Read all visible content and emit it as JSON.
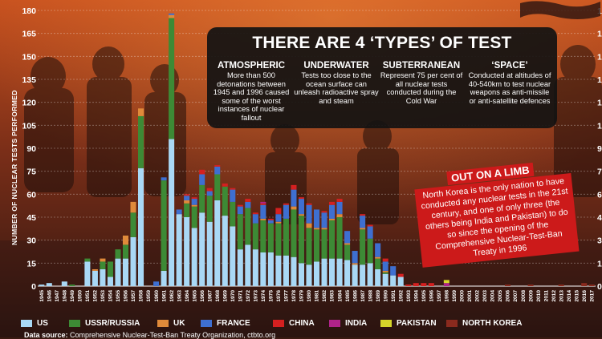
{
  "info": {
    "title": "THERE ARE 4 ‘TYPES’ OF TEST",
    "types": [
      {
        "head": "ATMOSPHERIC",
        "desc": "More than 500 detonations between 1945 and 1996 caused some of the worst instances of nuclear fallout"
      },
      {
        "head": "UNDERWATER",
        "desc": "Tests too close to the ocean surface can unleash radioactive spray and steam"
      },
      {
        "head": "SUBTERRANEAN",
        "desc": "Represent 75 per cent of all nuclear tests conducted during the Cold War"
      },
      {
        "head": "‘SPACE’",
        "desc": "Conducted at altitudes of 40-540km to test nuclear weapons as anti-missile or anti-satellite defences"
      }
    ]
  },
  "callout": {
    "title": "OUT ON A LIMB",
    "text": "North Korea is the only nation to have conducted any nuclear tests in the 21st century, and one of only three (the others being India and Pakistan) to do so since the opening of the Comprehensive Nuclear-Test-Ban Treaty in 1996"
  },
  "source": {
    "label": "Data source:",
    "text": "Comprehensive Nuclear-Test-Ban Treaty Organization, ctbto.org"
  },
  "colors": {
    "US": "#a9d8f5",
    "USSR/RUSSIA": "#3d8a35",
    "UK": "#e08a3a",
    "FRANCE": "#3e6fd0",
    "CHINA": "#d42020",
    "INDIA": "#b0238a",
    "PAKISTAN": "#d6d62a",
    "NORTH KOREA": "#8a2a1e"
  },
  "chart_data": {
    "type": "bar",
    "stacked": true,
    "ylabel": "NUMBER OF NUCLEAR TESTS PERFORMED",
    "ylim": [
      0,
      180
    ],
    "yticks": [
      0,
      15,
      30,
      45,
      60,
      75,
      90,
      105,
      120,
      135,
      150,
      165,
      180
    ],
    "categories": [
      "1945",
      "1946",
      "1947",
      "1948",
      "1949",
      "1950",
      "1951",
      "1952",
      "1953",
      "1954",
      "1955",
      "1956",
      "1957",
      "1958",
      "1959",
      "1960",
      "1961",
      "1962",
      "1963",
      "1964",
      "1965",
      "1966",
      "1967",
      "1968",
      "1969",
      "1970",
      "1971",
      "1972",
      "1973",
      "1974",
      "1975",
      "1976",
      "1977",
      "1978",
      "1979",
      "1980",
      "1981",
      "1982",
      "1983",
      "1984",
      "1985",
      "1986",
      "1987",
      "1988",
      "1989",
      "1990",
      "1991",
      "1992",
      "1993",
      "1994",
      "1995",
      "1996",
      "1997",
      "1998",
      "1999",
      "2000",
      "2001",
      "2002",
      "2003",
      "2004",
      "2005",
      "2006",
      "2007",
      "2008",
      "2009",
      "2010",
      "2011",
      "2012",
      "2013",
      "2014",
      "2015",
      "2016",
      "2017"
    ],
    "series": [
      {
        "name": "US",
        "values": [
          1,
          2,
          0,
          3,
          0,
          0,
          16,
          10,
          11,
          6,
          18,
          18,
          32,
          77,
          0,
          0,
          10,
          96,
          47,
          45,
          38,
          48,
          42,
          56,
          46,
          39,
          24,
          27,
          24,
          22,
          22,
          20,
          20,
          19,
          15,
          14,
          16,
          18,
          18,
          18,
          17,
          14,
          14,
          15,
          11,
          8,
          7,
          6,
          0,
          0,
          0,
          0,
          0,
          0,
          0,
          0,
          0,
          0,
          0,
          0,
          0,
          0,
          0,
          0,
          0,
          0,
          0,
          0,
          0,
          0,
          0,
          0,
          0
        ]
      },
      {
        "name": "USSR/RUSSIA",
        "values": [
          0,
          0,
          0,
          0,
          1,
          0,
          2,
          0,
          5,
          10,
          6,
          9,
          16,
          34,
          0,
          0,
          59,
          79,
          0,
          9,
          14,
          18,
          17,
          17,
          19,
          16,
          23,
          24,
          17,
          21,
          19,
          21,
          24,
          31,
          31,
          24,
          21,
          19,
          25,
          27,
          10,
          0,
          23,
          16,
          7,
          1,
          0,
          0,
          0,
          0,
          0,
          0,
          0,
          0,
          0,
          0,
          0,
          0,
          0,
          0,
          0,
          0,
          0,
          0,
          0,
          0,
          0,
          0,
          0,
          0,
          0,
          0,
          0
        ]
      },
      {
        "name": "UK",
        "values": [
          0,
          0,
          0,
          0,
          0,
          0,
          0,
          1,
          2,
          0,
          0,
          6,
          7,
          5,
          0,
          0,
          0,
          2,
          0,
          2,
          1,
          0,
          0,
          0,
          0,
          0,
          0,
          0,
          0,
          1,
          0,
          1,
          0,
          2,
          1,
          3,
          1,
          1,
          1,
          2,
          1,
          1,
          1,
          0,
          1,
          1,
          0,
          0,
          0,
          0,
          0,
          0,
          0,
          0,
          0,
          0,
          0,
          0,
          0,
          0,
          0,
          0,
          0,
          0,
          0,
          0,
          0,
          0,
          0,
          0,
          0,
          0,
          0
        ]
      },
      {
        "name": "FRANCE",
        "values": [
          0,
          0,
          0,
          0,
          0,
          0,
          0,
          0,
          0,
          0,
          0,
          0,
          0,
          0,
          0,
          3,
          2,
          1,
          3,
          3,
          4,
          7,
          3,
          5,
          0,
          8,
          5,
          4,
          6,
          9,
          2,
          5,
          9,
          11,
          10,
          12,
          12,
          10,
          9,
          8,
          8,
          8,
          8,
          8,
          9,
          6,
          6,
          0,
          0,
          0,
          0,
          0,
          0,
          0,
          0,
          0,
          0,
          0,
          0,
          0,
          0,
          0,
          0,
          0,
          0,
          0,
          0,
          0,
          0,
          0,
          0,
          0,
          0
        ]
      },
      {
        "name": "CHINA",
        "values": [
          0,
          0,
          0,
          0,
          0,
          0,
          0,
          0,
          0,
          0,
          0,
          0,
          0,
          0,
          0,
          0,
          0,
          0,
          0,
          1,
          1,
          3,
          2,
          1,
          2,
          1,
          1,
          2,
          1,
          1,
          1,
          4,
          1,
          3,
          1,
          1,
          0,
          1,
          2,
          2,
          0,
          0,
          1,
          1,
          0,
          2,
          0,
          2,
          1,
          2,
          2,
          2,
          0,
          0,
          0,
          0,
          0,
          0,
          0,
          0,
          0,
          0,
          0,
          0,
          0,
          0,
          0,
          0,
          0,
          0,
          0,
          0,
          0
        ]
      },
      {
        "name": "INDIA",
        "values": [
          0,
          0,
          0,
          0,
          0,
          0,
          0,
          0,
          0,
          0,
          0,
          0,
          0,
          0,
          0,
          0,
          0,
          0,
          0,
          0,
          0,
          0,
          0,
          0,
          0,
          0,
          0,
          0,
          0,
          1,
          0,
          0,
          0,
          0,
          0,
          0,
          0,
          0,
          0,
          0,
          0,
          0,
          0,
          0,
          0,
          0,
          0,
          0,
          0,
          0,
          0,
          0,
          0,
          2,
          0,
          0,
          0,
          0,
          0,
          0,
          0,
          0,
          0,
          0,
          0,
          0,
          0,
          0,
          0,
          0,
          0,
          0,
          0
        ]
      },
      {
        "name": "PAKISTAN",
        "values": [
          0,
          0,
          0,
          0,
          0,
          0,
          0,
          0,
          0,
          0,
          0,
          0,
          0,
          0,
          0,
          0,
          0,
          0,
          0,
          0,
          0,
          0,
          0,
          0,
          0,
          0,
          0,
          0,
          0,
          0,
          0,
          0,
          0,
          0,
          0,
          0,
          0,
          0,
          0,
          0,
          0,
          0,
          0,
          0,
          0,
          0,
          0,
          0,
          0,
          0,
          0,
          0,
          0,
          2,
          0,
          0,
          0,
          0,
          0,
          0,
          0,
          0,
          0,
          0,
          0,
          0,
          0,
          0,
          0,
          0,
          0,
          0,
          0
        ]
      },
      {
        "name": "NORTH KOREA",
        "values": [
          0,
          0,
          0,
          0,
          0,
          0,
          0,
          0,
          0,
          0,
          0,
          0,
          0,
          0,
          0,
          0,
          0,
          0,
          0,
          0,
          0,
          0,
          0,
          0,
          0,
          0,
          0,
          0,
          0,
          0,
          0,
          0,
          0,
          0,
          0,
          0,
          0,
          0,
          0,
          0,
          0,
          0,
          0,
          0,
          0,
          0,
          0,
          0,
          0,
          0,
          0,
          0,
          0,
          0,
          0,
          0,
          0,
          0,
          0,
          0,
          0,
          1,
          0,
          0,
          1,
          0,
          0,
          0,
          1,
          0,
          0,
          2,
          1
        ]
      }
    ]
  }
}
